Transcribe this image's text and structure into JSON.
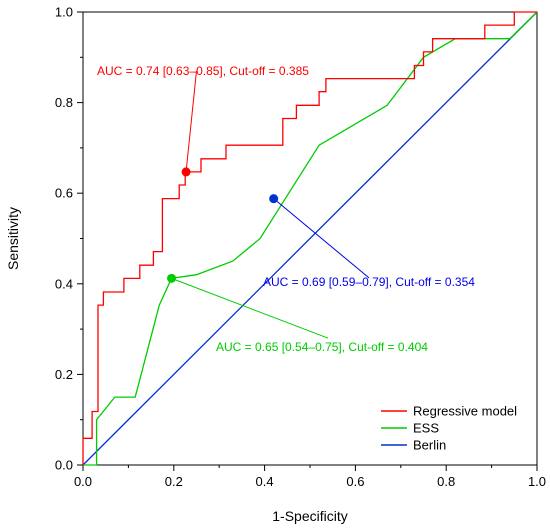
{
  "chart_data": {
    "type": "line",
    "xlabel": "1-Specificity",
    "ylabel": "Sensitivity",
    "xlim": [
      0,
      1
    ],
    "ylim": [
      0,
      1
    ],
    "xticks": [
      "0.0",
      "0.2",
      "0.4",
      "0.6",
      "0.8",
      "1.0"
    ],
    "yticks": [
      "0.0",
      "0.2",
      "0.4",
      "0.6",
      "0.8",
      "1.0"
    ],
    "grid": false,
    "legend": "bottom-right",
    "series": [
      {
        "name": "Regressive model",
        "color": "#ff0000",
        "points": [
          [
            0.0,
            0.0
          ],
          [
            0.0,
            0.059
          ],
          [
            0.02,
            0.059
          ],
          [
            0.02,
            0.118
          ],
          [
            0.033,
            0.118
          ],
          [
            0.033,
            0.353
          ],
          [
            0.045,
            0.353
          ],
          [
            0.045,
            0.382
          ],
          [
            0.09,
            0.382
          ],
          [
            0.09,
            0.412
          ],
          [
            0.125,
            0.412
          ],
          [
            0.125,
            0.441
          ],
          [
            0.155,
            0.441
          ],
          [
            0.155,
            0.471
          ],
          [
            0.175,
            0.471
          ],
          [
            0.175,
            0.588
          ],
          [
            0.212,
            0.588
          ],
          [
            0.212,
            0.618
          ],
          [
            0.225,
            0.618
          ],
          [
            0.225,
            0.647
          ],
          [
            0.26,
            0.647
          ],
          [
            0.26,
            0.676
          ],
          [
            0.315,
            0.676
          ],
          [
            0.315,
            0.706
          ],
          [
            0.44,
            0.706
          ],
          [
            0.44,
            0.765
          ],
          [
            0.47,
            0.765
          ],
          [
            0.47,
            0.794
          ],
          [
            0.52,
            0.794
          ],
          [
            0.52,
            0.824
          ],
          [
            0.535,
            0.824
          ],
          [
            0.535,
            0.853
          ],
          [
            0.73,
            0.853
          ],
          [
            0.73,
            0.882
          ],
          [
            0.75,
            0.882
          ],
          [
            0.75,
            0.912
          ],
          [
            0.77,
            0.912
          ],
          [
            0.77,
            0.941
          ],
          [
            0.885,
            0.941
          ],
          [
            0.885,
            0.971
          ],
          [
            0.95,
            0.971
          ],
          [
            0.95,
            1.0
          ],
          [
            1.0,
            1.0
          ]
        ]
      },
      {
        "name": "ESS",
        "color": "#00cc00",
        "points": [
          [
            0.0,
            0.0
          ],
          [
            0.03,
            0.0
          ],
          [
            0.03,
            0.1
          ],
          [
            0.07,
            0.15
          ],
          [
            0.115,
            0.15
          ],
          [
            0.168,
            0.353
          ],
          [
            0.195,
            0.412
          ],
          [
            0.25,
            0.42
          ],
          [
            0.33,
            0.45
          ],
          [
            0.39,
            0.5
          ],
          [
            0.52,
            0.706
          ],
          [
            0.67,
            0.794
          ],
          [
            0.75,
            0.9
          ],
          [
            0.82,
            0.941
          ],
          [
            0.94,
            0.941
          ],
          [
            1.0,
            1.0
          ]
        ]
      },
      {
        "name": "Berlin",
        "color": "#0033cc",
        "points": [
          [
            0.0,
            0.0
          ],
          [
            1.0,
            1.0
          ]
        ]
      }
    ],
    "cutoff_points": [
      {
        "series": "Regressive model",
        "x": 0.227,
        "y": 0.647,
        "color": "#ff0000"
      },
      {
        "series": "ESS",
        "x": 0.195,
        "y": 0.412,
        "color": "#00cc00"
      },
      {
        "series": "Berlin",
        "x": 0.42,
        "y": 0.588,
        "color": "#0033cc"
      }
    ],
    "annotations": [
      {
        "text": "AUC = 0.74 [0.63–0.85], Cut-off = 0.385",
        "color": "#ff0000",
        "anchor_x": 0.25,
        "anchor_y": 0.87,
        "target_x": 0.227,
        "target_y": 0.647
      },
      {
        "text": "AUC = 0.69 [0.59–0.79], Cut-off = 0.354",
        "color": "#0000ee",
        "anchor_x": 0.63,
        "anchor_y": 0.413,
        "target_x": 0.42,
        "target_y": 0.588
      },
      {
        "text": "AUC = 0.65 [0.54–0.75], Cut-off = 0.404",
        "color": "#00cc00",
        "anchor_x": 0.54,
        "anchor_y": 0.28,
        "target_x": 0.195,
        "target_y": 0.412
      }
    ]
  }
}
